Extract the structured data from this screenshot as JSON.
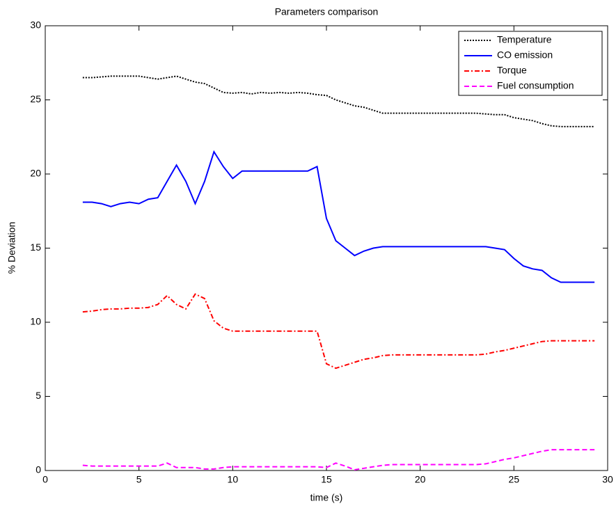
{
  "chart_data": {
    "type": "line",
    "title": "Parameters comparison",
    "x_label": "time (s)",
    "y_label": "% Deviation",
    "xlim": [
      0,
      30
    ],
    "ylim": [
      0,
      30
    ],
    "xticks": [
      0,
      5,
      10,
      15,
      20,
      25,
      30
    ],
    "yticks": [
      0,
      5,
      10,
      15,
      20,
      25,
      30
    ],
    "grid": false,
    "legend": "upper right",
    "x": [
      2,
      2.5,
      3,
      3.5,
      4,
      4.5,
      5,
      5.5,
      6,
      6.5,
      7,
      7.5,
      8,
      8.5,
      9,
      9.5,
      10,
      10.5,
      11,
      11.5,
      12,
      12.5,
      13,
      13.5,
      14,
      14.5,
      15,
      15.5,
      16,
      16.5,
      17,
      17.5,
      18,
      18.5,
      19,
      19.5,
      20,
      20.5,
      21,
      21.5,
      22,
      22.5,
      23,
      23.5,
      24,
      24.5,
      25,
      25.5,
      26,
      26.5,
      27,
      27.5,
      28,
      28.5,
      29,
      29.3
    ],
    "series": [
      {
        "name": "Temperature",
        "color": "#000000",
        "style": "dotted",
        "values": [
          26.5,
          26.5,
          26.55,
          26.6,
          26.6,
          26.6,
          26.6,
          26.5,
          26.4,
          26.5,
          26.6,
          26.4,
          26.2,
          26.1,
          25.8,
          25.5,
          25.45,
          25.5,
          25.4,
          25.5,
          25.45,
          25.5,
          25.45,
          25.5,
          25.45,
          25.35,
          25.3,
          25.0,
          24.8,
          24.6,
          24.5,
          24.3,
          24.1,
          24.1,
          24.1,
          24.1,
          24.1,
          24.1,
          24.1,
          24.1,
          24.1,
          24.1,
          24.1,
          24.05,
          24.0,
          24.0,
          23.8,
          23.7,
          23.6,
          23.4,
          23.25,
          23.2,
          23.2,
          23.2,
          23.2,
          23.2
        ]
      },
      {
        "name": "CO emission",
        "color": "#0000ff",
        "style": "solid",
        "values": [
          18.1,
          18.1,
          18.0,
          17.8,
          18.0,
          18.1,
          18.0,
          18.3,
          18.4,
          19.5,
          20.6,
          19.5,
          18.0,
          19.5,
          21.5,
          20.5,
          19.7,
          20.2,
          20.2,
          20.2,
          20.2,
          20.2,
          20.2,
          20.2,
          20.2,
          20.5,
          17.0,
          15.5,
          15.0,
          14.5,
          14.8,
          15.0,
          15.1,
          15.1,
          15.1,
          15.1,
          15.1,
          15.1,
          15.1,
          15.1,
          15.1,
          15.1,
          15.1,
          15.1,
          15.0,
          14.9,
          14.3,
          13.8,
          13.6,
          13.5,
          13.0,
          12.7,
          12.7,
          12.7,
          12.7,
          12.7
        ]
      },
      {
        "name": "Torque",
        "color": "#ff0000",
        "style": "dashdot",
        "values": [
          10.7,
          10.75,
          10.85,
          10.9,
          10.9,
          10.95,
          10.95,
          11.0,
          11.2,
          11.8,
          11.2,
          10.9,
          11.9,
          11.6,
          10.1,
          9.6,
          9.4,
          9.4,
          9.4,
          9.4,
          9.4,
          9.4,
          9.4,
          9.4,
          9.4,
          9.4,
          7.2,
          6.9,
          7.1,
          7.3,
          7.5,
          7.6,
          7.75,
          7.8,
          7.8,
          7.8,
          7.8,
          7.8,
          7.8,
          7.8,
          7.8,
          7.8,
          7.8,
          7.85,
          8.0,
          8.1,
          8.25,
          8.4,
          8.55,
          8.7,
          8.75,
          8.75,
          8.75,
          8.75,
          8.75,
          8.75
        ]
      },
      {
        "name": "Fuel consumption",
        "color": "#ff00ff",
        "style": "dashed",
        "values": [
          0.35,
          0.3,
          0.3,
          0.3,
          0.3,
          0.3,
          0.3,
          0.3,
          0.3,
          0.5,
          0.2,
          0.2,
          0.2,
          0.1,
          0.1,
          0.2,
          0.25,
          0.25,
          0.25,
          0.25,
          0.25,
          0.25,
          0.25,
          0.25,
          0.25,
          0.25,
          0.2,
          0.5,
          0.3,
          0.05,
          0.15,
          0.25,
          0.35,
          0.4,
          0.4,
          0.4,
          0.4,
          0.4,
          0.4,
          0.4,
          0.4,
          0.4,
          0.4,
          0.45,
          0.6,
          0.75,
          0.85,
          1.0,
          1.15,
          1.3,
          1.4,
          1.4,
          1.4,
          1.4,
          1.4,
          1.4
        ]
      }
    ]
  }
}
